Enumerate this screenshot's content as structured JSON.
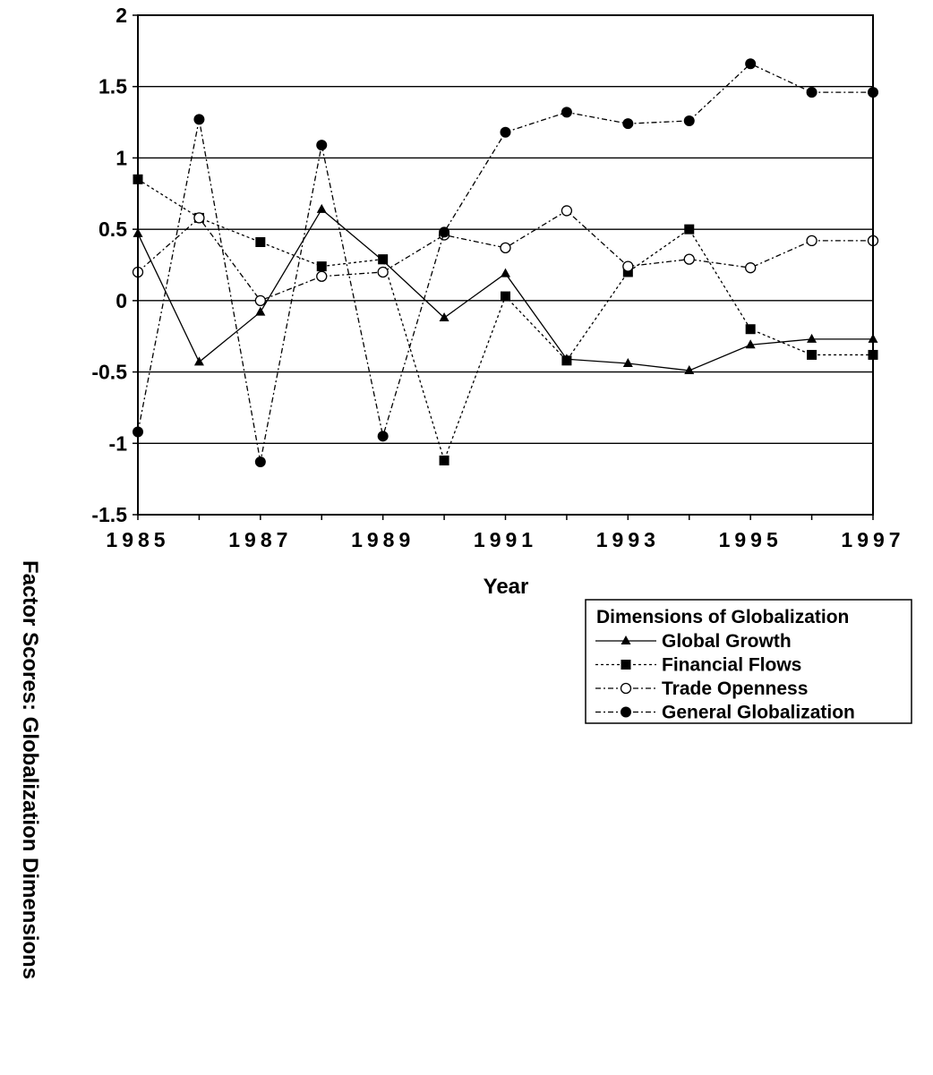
{
  "chart_data": {
    "type": "line",
    "title": "",
    "xlabel": "Year",
    "ylabel": "Factor Scores: Globalization Dimensions",
    "x": [
      1985,
      1986,
      1987,
      1988,
      1989,
      1990,
      1991,
      1992,
      1993,
      1994,
      1995,
      1996,
      1997
    ],
    "x_tick_labels": [
      "1985",
      "1987",
      "1989",
      "1991",
      "1993",
      "1995",
      "1997"
    ],
    "x_tick_values": [
      1985,
      1987,
      1989,
      1991,
      1993,
      1995,
      1997
    ],
    "ylim": [
      -1.5,
      2
    ],
    "y_ticks": [
      2,
      1.5,
      1,
      0.5,
      0,
      -0.5,
      -1,
      -1.5
    ],
    "y_tick_labels": [
      "2",
      "1.5",
      "1",
      "0.5",
      "0",
      "-0.5",
      "-1",
      "-1.5"
    ],
    "grid": "horizontal",
    "legend_title": "Dimensions of Globalization",
    "legend_position": "bottom-right",
    "series": [
      {
        "name": "Global Growth",
        "marker": "triangle",
        "line_style": "solid",
        "values": [
          0.47,
          -0.43,
          -0.08,
          0.64,
          0.28,
          -0.12,
          0.19,
          -0.41,
          -0.44,
          -0.49,
          -0.31,
          -0.27,
          -0.27
        ]
      },
      {
        "name": "Financial Flows",
        "marker": "square",
        "line_style": "dotted",
        "values": [
          0.85,
          0.58,
          0.41,
          0.24,
          0.29,
          -1.12,
          0.03,
          -0.42,
          0.2,
          0.5,
          -0.2,
          -0.38,
          -0.38
        ]
      },
      {
        "name": "Trade Openness",
        "marker": "open-circle",
        "line_style": "dashdot",
        "values": [
          0.2,
          0.58,
          0.0,
          0.17,
          0.2,
          0.46,
          0.37,
          0.63,
          0.24,
          0.29,
          0.23,
          0.42,
          0.42
        ]
      },
      {
        "name": "General Globalization",
        "marker": "filled-circle",
        "line_style": "dashdot",
        "values": [
          -0.92,
          1.27,
          -1.13,
          1.09,
          -0.95,
          0.48,
          1.18,
          1.32,
          1.24,
          1.26,
          1.66,
          1.46,
          1.46
        ]
      }
    ]
  }
}
